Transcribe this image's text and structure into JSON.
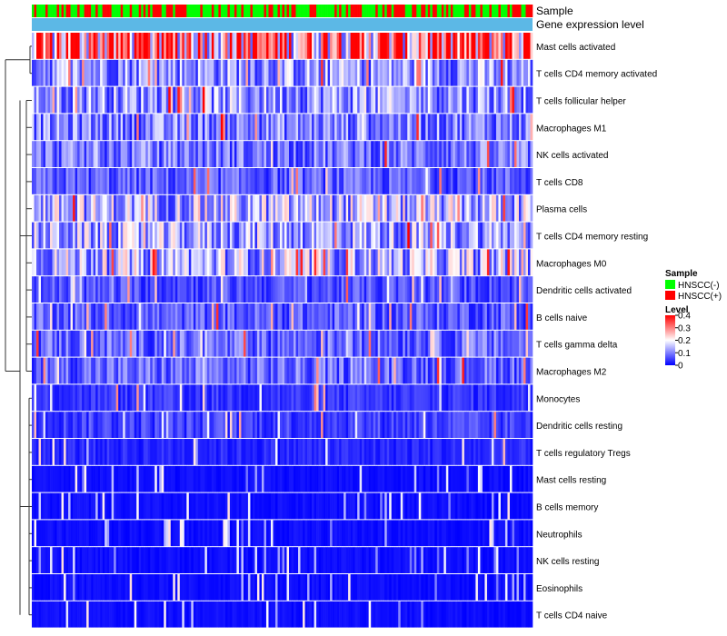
{
  "chart_data": {
    "type": "heatmap",
    "title": "",
    "annotation_tracks": [
      {
        "label": "Sample",
        "legend_title": "Sample",
        "categories": [
          "HNSCC(-)",
          "HNSCC(+)"
        ],
        "colors": {
          "HNSCC(-)": "#00ff00",
          "HNSCC(+)": "#ff0000"
        }
      },
      {
        "label": "Gene expression level"
      }
    ],
    "rows": [
      "Mast cells activated",
      "T cells CD4 memory activated",
      "T cells follicular helper",
      "Macrophages M1",
      "NK cells activated",
      "T cells CD8",
      "Plasma cells",
      "T cells CD4 memory resting",
      "Macrophages M0",
      "Dendritic cells activated",
      "B cells naive",
      "T cells gamma delta",
      "Macrophages M2",
      "Monocytes",
      "Dendritic cells resting",
      "T cells regulatory  Tregs",
      "Mast cells resting",
      "B cells memory",
      "Neutrophils",
      "NK cells resting",
      "Eosinophils",
      "T cells CD4 naive"
    ],
    "row_mean_level": [
      0.3,
      0.12,
      0.12,
      0.1,
      0.09,
      0.07,
      0.14,
      0.13,
      0.14,
      0.06,
      0.07,
      0.08,
      0.08,
      0.04,
      0.05,
      0.03,
      0.02,
      0.025,
      0.02,
      0.01,
      0.005,
      0.02
    ],
    "n_samples": 220,
    "hnscc_pos_fraction": 0.42,
    "color_scale": {
      "title": "Level",
      "min": 0,
      "max": 0.4,
      "ticks": [
        "0.4",
        "0.3",
        "0.2",
        "0.1",
        "0"
      ],
      "tick_values": [
        0.4,
        0.3,
        0.2,
        0.1,
        0
      ],
      "colors": [
        "#0000ff",
        "#ffffff",
        "#ff0000"
      ]
    },
    "legend": {
      "sample_title": "Sample",
      "sample_items": [
        "HNSCC(-)",
        "HNSCC(+)"
      ],
      "level_title": "Level"
    },
    "track_colors": {
      "expression": "#5cb8e6"
    },
    "row_dendrogram": true
  }
}
